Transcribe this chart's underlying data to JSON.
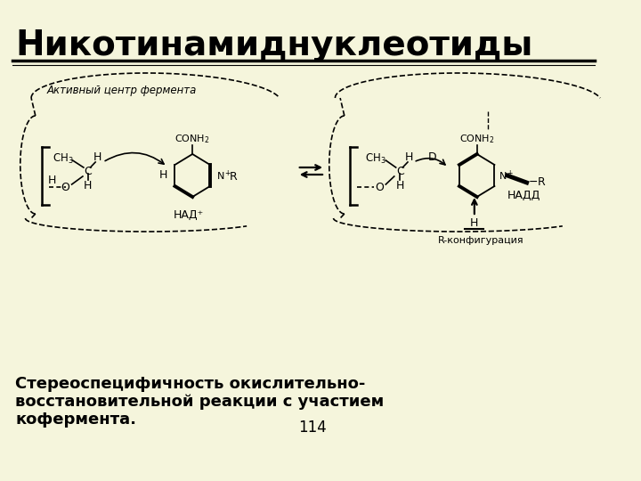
{
  "background_color": "#f5f5dc",
  "title": "Никотинамиднуклеотиды",
  "title_fontsize": 28,
  "subtitle_line1": "Стереоспецифичность окислительно-",
  "subtitle_line2": "восстановительной реакции с участием",
  "subtitle_line3": "кофермента.",
  "subtitle_fontsize": 13,
  "page_number": "114",
  "active_center_label": "Активный центр фермента",
  "nad_label": "НАД⁺",
  "nadh_label": "НАДД",
  "r_config_label": "R-конфигурация",
  "text_color": "#000000",
  "line_color": "#000000"
}
